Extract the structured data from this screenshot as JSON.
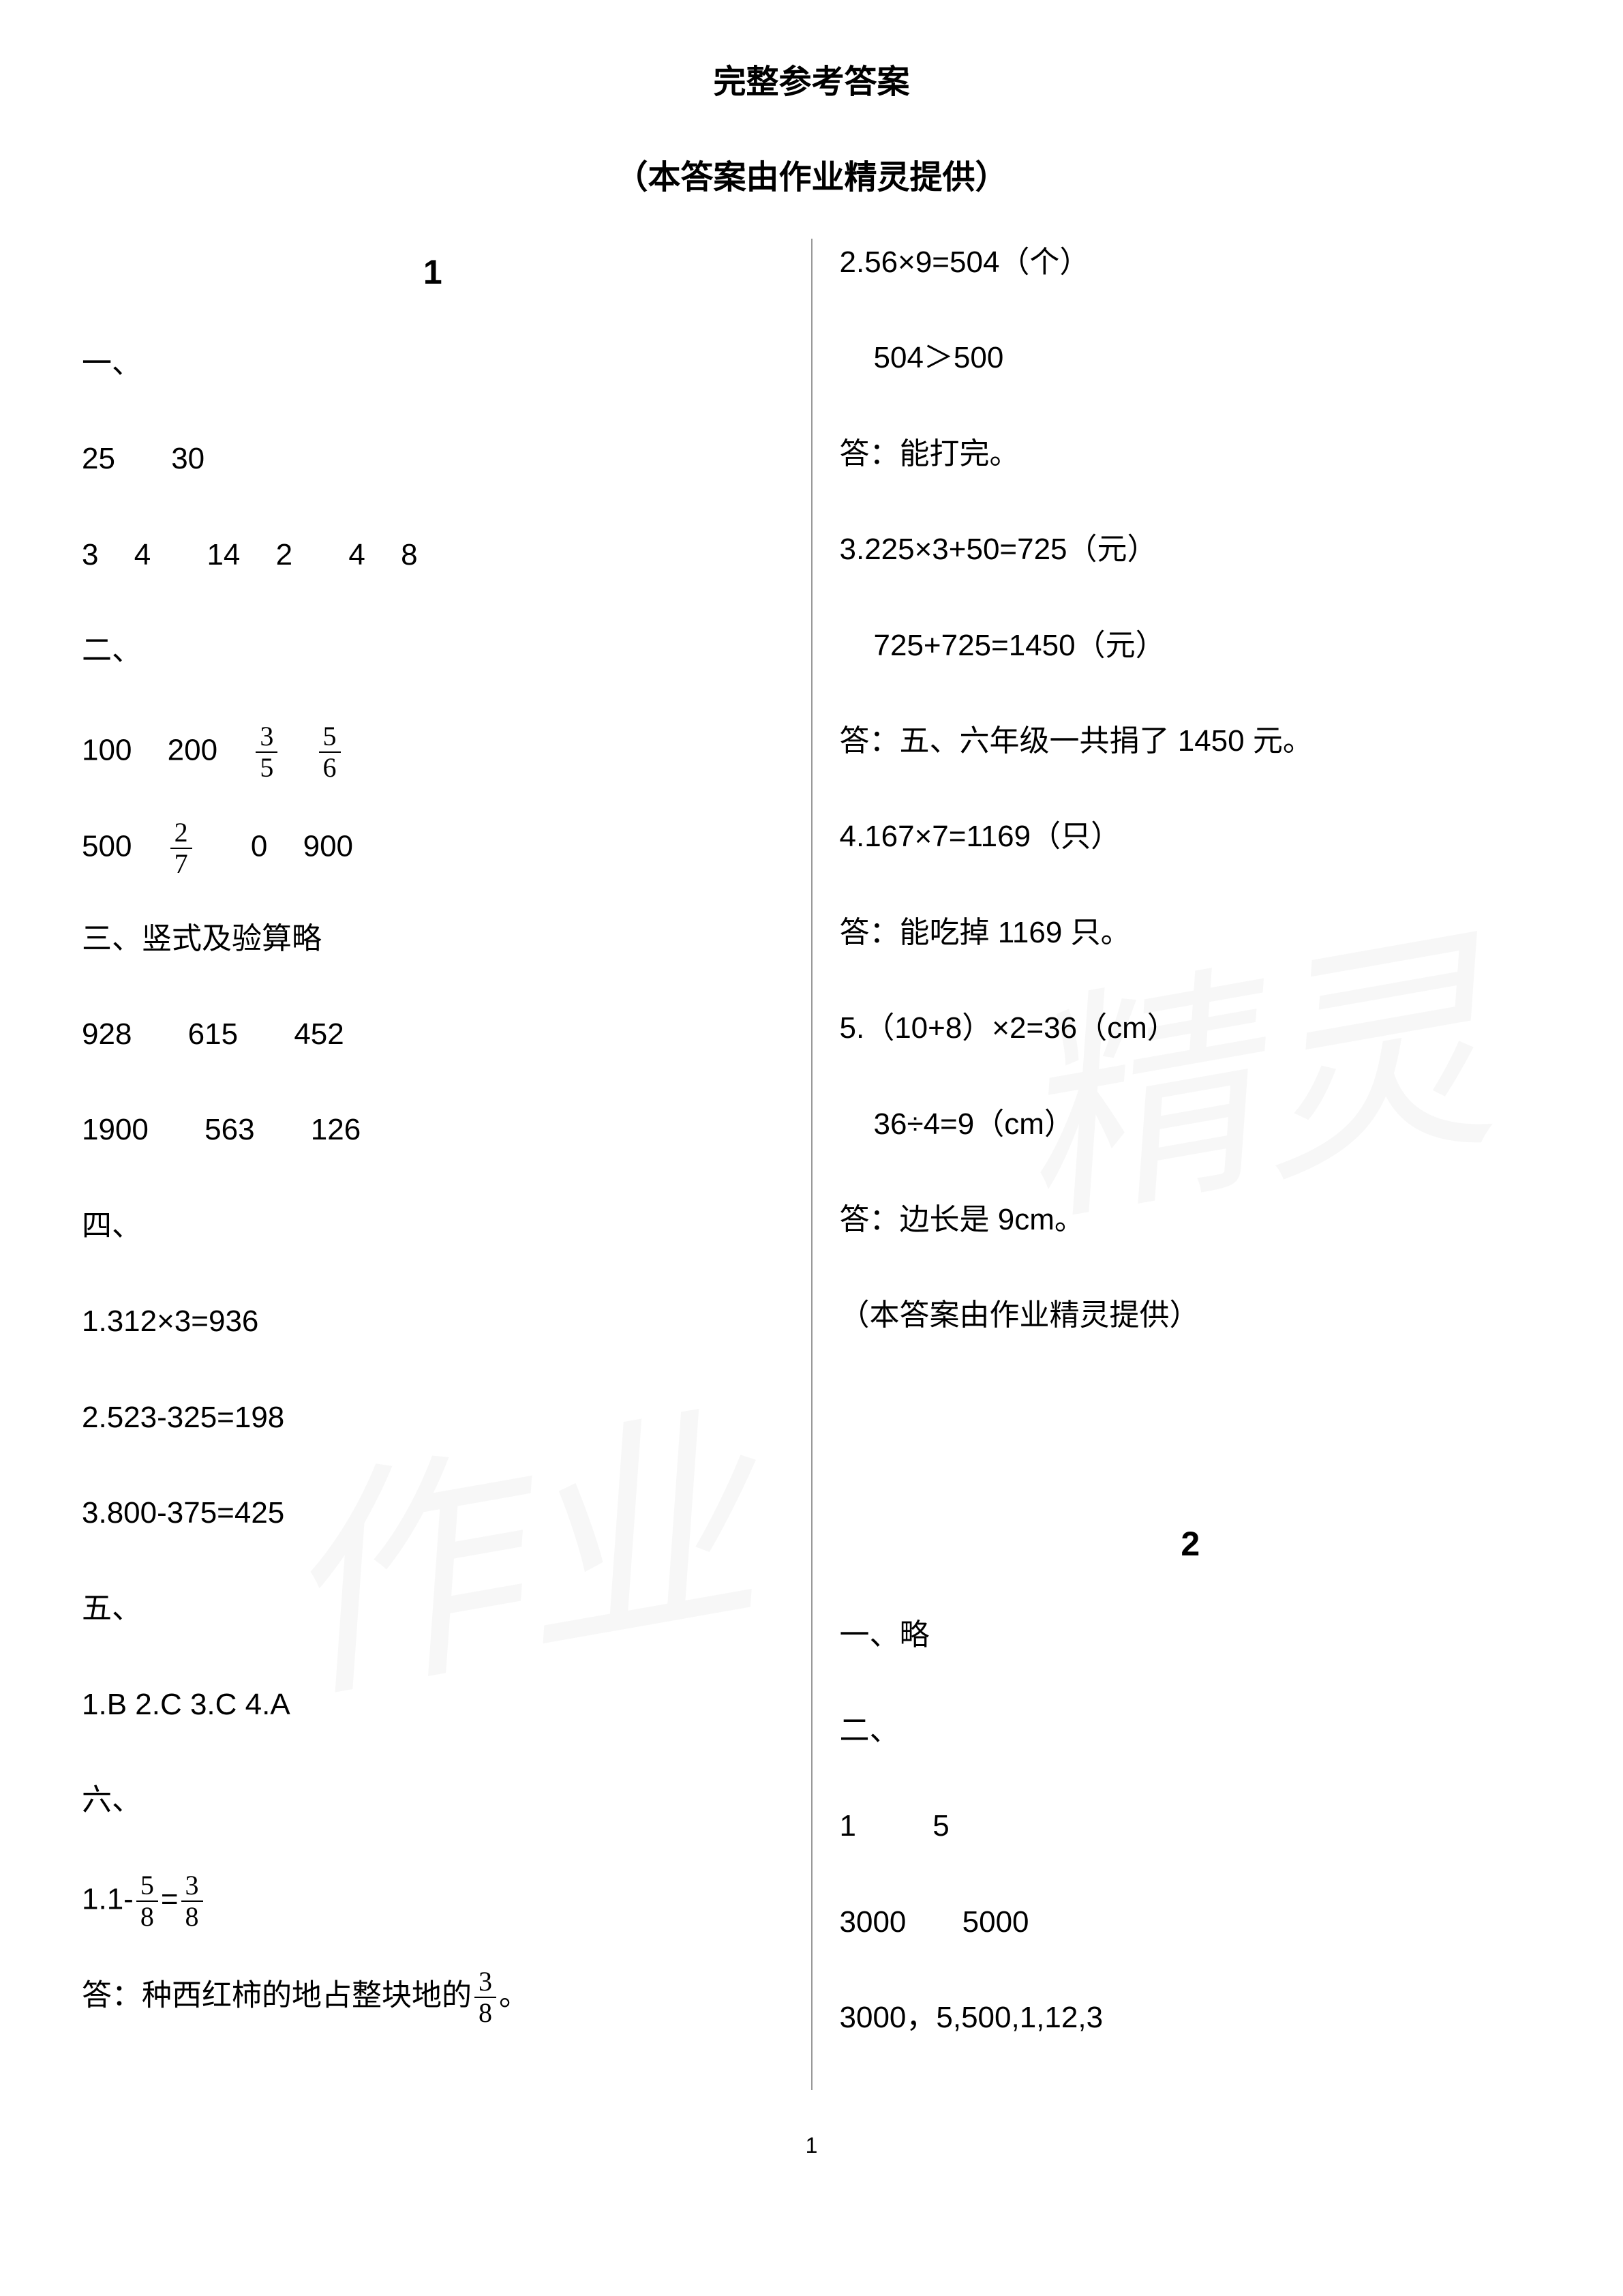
{
  "title": "完整参考答案",
  "subtitle": "（本答案由作业精灵提供）",
  "watermark1": "精灵",
  "watermark2": "作业",
  "page1": {
    "section_number": "1",
    "s1": {
      "heading": "一、",
      "row1": [
        "25",
        "30"
      ],
      "row2": [
        "3",
        "4",
        "14",
        "2",
        "4",
        "8"
      ]
    },
    "s2": {
      "heading": "二、",
      "row1_vals": [
        "100",
        "200"
      ],
      "row1_fracs": [
        {
          "num": "3",
          "den": "5"
        },
        {
          "num": "5",
          "den": "6"
        }
      ],
      "row2_pre": "500",
      "row2_frac": {
        "num": "2",
        "den": "7"
      },
      "row2_post": [
        "0",
        "900"
      ]
    },
    "s3": {
      "heading": "三、竖式及验算略",
      "row1": [
        "928",
        "615",
        "452"
      ],
      "row2": [
        "1900",
        "563",
        "126"
      ]
    },
    "s4": {
      "heading": "四、",
      "items": [
        "1.312×3=936",
        "2.523-325=198",
        "3.800-375=425"
      ]
    },
    "s5": {
      "heading": "五、",
      "content": "1.B   2.C   3.C   4.A"
    },
    "s6": {
      "heading": "六、",
      "q1_prefix": "1.1-",
      "q1_frac1": {
        "num": "5",
        "den": "8"
      },
      "q1_eq": "=",
      "q1_frac2": {
        "num": "3",
        "den": "8"
      },
      "q1_answer_pre": "答：种西红柿的地占整块地的",
      "q1_answer_frac": {
        "num": "3",
        "den": "8"
      },
      "q1_answer_post": "。",
      "right_col": [
        "2.56×9=504（个）",
        "504＞500",
        "答：能打完。",
        "3.225×3+50=725（元）",
        "725+725=1450（元）",
        "答：五、六年级一共捐了 1450 元。",
        "4.167×7=1169（只）",
        "答：能吃掉 1169 只。",
        "5.（10+8）×2=36（cm）",
        "36÷4=9（cm）",
        "答：边长是 9cm。",
        "（本答案由作业精灵提供）"
      ]
    }
  },
  "page2": {
    "section_number": "2",
    "s1": {
      "heading": "一、略"
    },
    "s2": {
      "heading": "二、",
      "row1": [
        "1",
        "5"
      ],
      "row2": [
        "3000",
        "5000"
      ],
      "row3": "3000，5,500,1,12,3"
    }
  },
  "page_number": "1"
}
